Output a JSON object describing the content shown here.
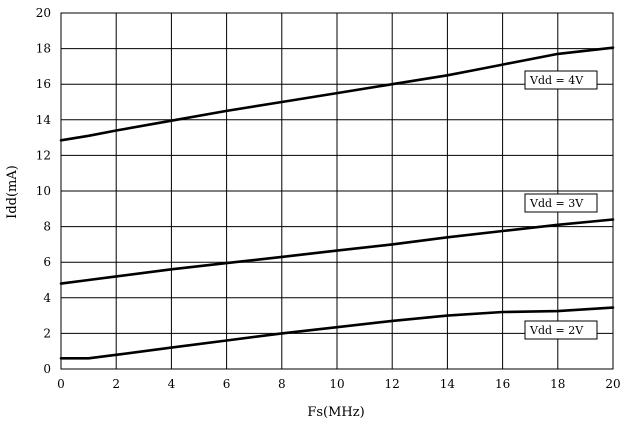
{
  "chart_data": {
    "type": "line",
    "xlabel": "Fs(MHz)",
    "ylabel": "Idd(mA)",
    "xlim": [
      0,
      20
    ],
    "ylim": [
      0,
      20
    ],
    "xticks": [
      "0",
      "2",
      "4",
      "6",
      "8",
      "10",
      "12",
      "14",
      "16",
      "18",
      "20"
    ],
    "yticks": [
      "0",
      "2",
      "4",
      "6",
      "8",
      "10",
      "12",
      "14",
      "16",
      "18",
      "20"
    ],
    "grid": true,
    "series": [
      {
        "name": "Vdd = 4V",
        "x": [
          0,
          1,
          2,
          4,
          6,
          8,
          10,
          12,
          14,
          15,
          16,
          18,
          20
        ],
        "y": [
          12.85,
          13.1,
          13.4,
          13.95,
          14.5,
          15.0,
          15.5,
          16.0,
          16.5,
          16.8,
          17.1,
          17.7,
          18.05
        ]
      },
      {
        "name": "Vdd = 3V",
        "x": [
          0,
          1,
          2,
          4,
          6,
          8,
          10,
          12,
          14,
          16,
          18,
          20
        ],
        "y": [
          4.8,
          5.0,
          5.2,
          5.6,
          5.95,
          6.3,
          6.65,
          7.0,
          7.4,
          7.75,
          8.1,
          8.4
        ]
      },
      {
        "name": "Vdd = 2V",
        "x": [
          0,
          1,
          2,
          4,
          6,
          8,
          10,
          12,
          14,
          16,
          18,
          20
        ],
        "y": [
          0.6,
          0.6,
          0.8,
          1.2,
          1.6,
          2.0,
          2.35,
          2.7,
          3.0,
          3.2,
          3.25,
          3.45
        ]
      }
    ]
  }
}
